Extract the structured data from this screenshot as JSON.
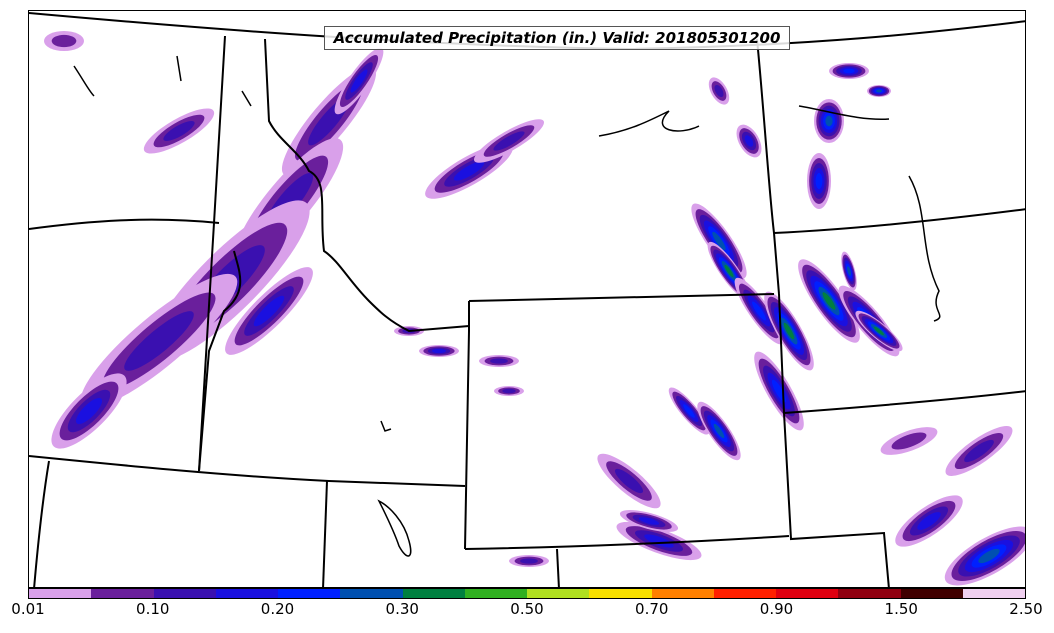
{
  "title": "Accumulated Precipitation (in.) Valid: 201805301200",
  "colorbar": {
    "colors": [
      "#d9a0ea",
      "#6a1f9c",
      "#3a10b0",
      "#1a10e0",
      "#0020ff",
      "#0050b0",
      "#008040",
      "#30b020",
      "#b0e020",
      "#f8e000",
      "#ff8000",
      "#ff2000",
      "#e00010",
      "#900010",
      "#400000",
      "#f0d0f0"
    ],
    "tick_labels": [
      "0.01",
      "0.10",
      "0.20",
      "0.30",
      "0.50",
      "0.70",
      "0.90",
      "1.50",
      "2.50"
    ]
  },
  "map": {
    "product": "Accumulated Precipitation",
    "units": "in."
  }
}
